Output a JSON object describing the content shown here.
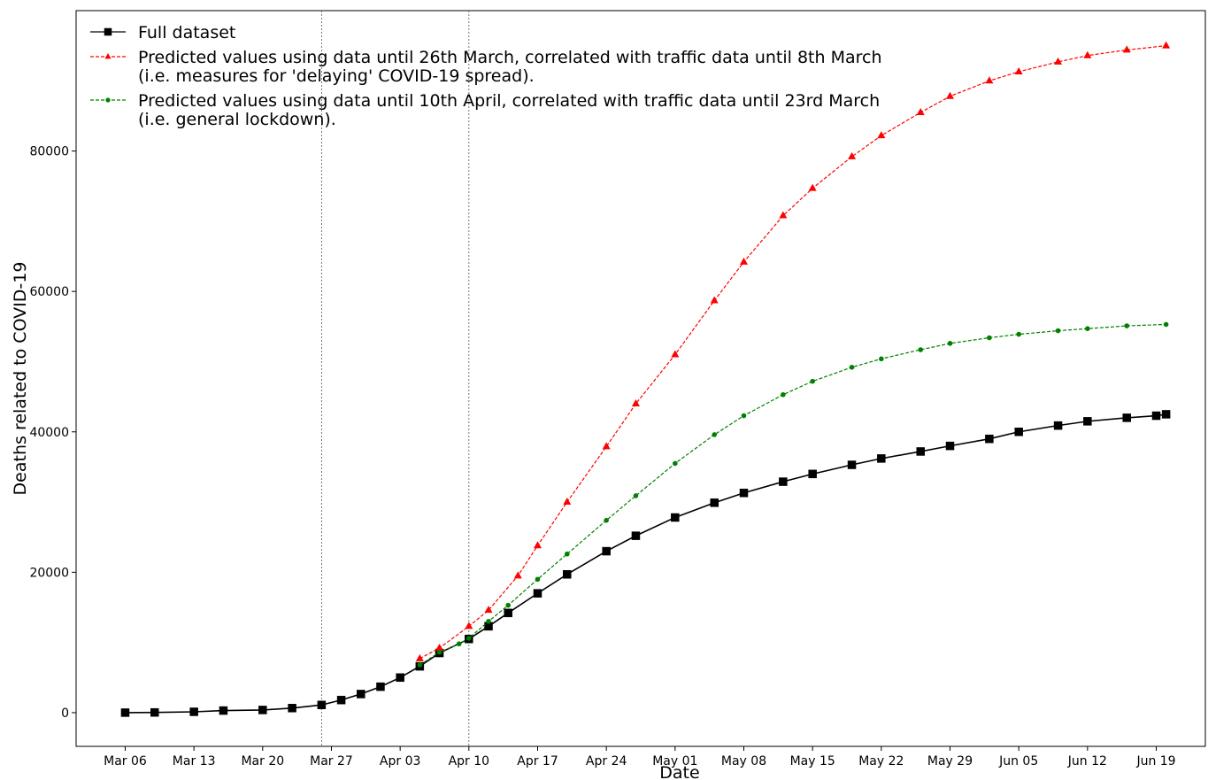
{
  "chart_data": {
    "type": "line",
    "title": "",
    "xlabel": "Date",
    "ylabel": "Deaths related to COVID-19",
    "ylim": [
      -4800,
      100000
    ],
    "xlim": [
      "2020-03-01",
      "2020-06-24"
    ],
    "x_ticks": [
      "Mar 06",
      "Mar 13",
      "Mar 20",
      "Mar 27",
      "Apr 03",
      "Apr 10",
      "Apr 17",
      "Apr 24",
      "May 01",
      "May 08",
      "May 15",
      "May 22",
      "May 29",
      "Jun 05",
      "Jun 12",
      "Jun 19"
    ],
    "y_ticks": [
      "0",
      "20000",
      "40000",
      "60000",
      "80000"
    ],
    "vertical_lines": [
      "2020-03-26",
      "2020-04-10"
    ],
    "grid": false,
    "legend_position": "top-left",
    "series": [
      {
        "name": "Full dataset",
        "color": "#000000",
        "marker": "square",
        "line": "solid",
        "points": [
          [
            "2020-03-06",
            1
          ],
          [
            "2020-03-09",
            30
          ],
          [
            "2020-03-13",
            120
          ],
          [
            "2020-03-16",
            300
          ],
          [
            "2020-03-20",
            380
          ],
          [
            "2020-03-23",
            650
          ],
          [
            "2020-03-26",
            1100
          ],
          [
            "2020-03-28",
            1800
          ],
          [
            "2020-03-30",
            2650
          ],
          [
            "2020-04-01",
            3700
          ],
          [
            "2020-04-03",
            5000
          ],
          [
            "2020-04-05",
            6600
          ],
          [
            "2020-04-07",
            8500
          ],
          [
            "2020-04-10",
            10500
          ],
          [
            "2020-04-12",
            12300
          ],
          [
            "2020-04-14",
            14200
          ],
          [
            "2020-04-17",
            17000
          ],
          [
            "2020-04-20",
            19700
          ],
          [
            "2020-04-24",
            23000
          ],
          [
            "2020-04-27",
            25200
          ],
          [
            "2020-05-01",
            27800
          ],
          [
            "2020-05-05",
            29900
          ],
          [
            "2020-05-08",
            31300
          ],
          [
            "2020-05-12",
            32900
          ],
          [
            "2020-05-15",
            34000
          ],
          [
            "2020-05-19",
            35300
          ],
          [
            "2020-05-22",
            36200
          ],
          [
            "2020-05-26",
            37200
          ],
          [
            "2020-05-29",
            38000
          ],
          [
            "2020-06-02",
            39000
          ],
          [
            "2020-06-05",
            40000
          ],
          [
            "2020-06-09",
            40900
          ],
          [
            "2020-06-12",
            41500
          ],
          [
            "2020-06-16",
            42000
          ],
          [
            "2020-06-19",
            42300
          ],
          [
            "2020-06-20",
            42500
          ]
        ]
      },
      {
        "name": "Predicted values using data until 26th March, correlated with traffic data until 8th March\n(i.e. measures for 'delaying' COVID-19 spread).",
        "color": "#ff0000",
        "marker": "triangle",
        "line": "dashed",
        "points": [
          [
            "2020-04-05",
            7700
          ],
          [
            "2020-04-07",
            9200
          ],
          [
            "2020-04-10",
            12300
          ],
          [
            "2020-04-12",
            14600
          ],
          [
            "2020-04-15",
            19500
          ],
          [
            "2020-04-17",
            23800
          ],
          [
            "2020-04-20",
            30000
          ],
          [
            "2020-04-24",
            37900
          ],
          [
            "2020-04-27",
            44000
          ],
          [
            "2020-05-01",
            51000
          ],
          [
            "2020-05-05",
            58700
          ],
          [
            "2020-05-08",
            64200
          ],
          [
            "2020-05-12",
            70800
          ],
          [
            "2020-05-15",
            74700
          ],
          [
            "2020-05-19",
            79200
          ],
          [
            "2020-05-22",
            82200
          ],
          [
            "2020-05-26",
            85500
          ],
          [
            "2020-05-29",
            87800
          ],
          [
            "2020-06-02",
            90000
          ],
          [
            "2020-06-05",
            91300
          ],
          [
            "2020-06-09",
            92700
          ],
          [
            "2020-06-12",
            93600
          ],
          [
            "2020-06-16",
            94400
          ],
          [
            "2020-06-20",
            95000
          ]
        ]
      },
      {
        "name": "Predicted values using data until 10th April, correlated with traffic data until 23rd March\n(i.e. general lockdown).",
        "color": "#008000",
        "marker": "circle",
        "line": "dashed",
        "points": [
          [
            "2020-04-05",
            6800
          ],
          [
            "2020-04-07",
            8600
          ],
          [
            "2020-04-09",
            9800
          ],
          [
            "2020-04-10",
            10600
          ],
          [
            "2020-04-12",
            13000
          ],
          [
            "2020-04-14",
            15300
          ],
          [
            "2020-04-17",
            19000
          ],
          [
            "2020-04-20",
            22600
          ],
          [
            "2020-04-24",
            27400
          ],
          [
            "2020-04-27",
            30900
          ],
          [
            "2020-05-01",
            35500
          ],
          [
            "2020-05-05",
            39600
          ],
          [
            "2020-05-08",
            42300
          ],
          [
            "2020-05-12",
            45300
          ],
          [
            "2020-05-15",
            47200
          ],
          [
            "2020-05-19",
            49200
          ],
          [
            "2020-05-22",
            50400
          ],
          [
            "2020-05-26",
            51700
          ],
          [
            "2020-05-29",
            52600
          ],
          [
            "2020-06-02",
            53400
          ],
          [
            "2020-06-05",
            53900
          ],
          [
            "2020-06-09",
            54400
          ],
          [
            "2020-06-12",
            54700
          ],
          [
            "2020-06-16",
            55100
          ],
          [
            "2020-06-20",
            55300
          ]
        ]
      }
    ]
  }
}
